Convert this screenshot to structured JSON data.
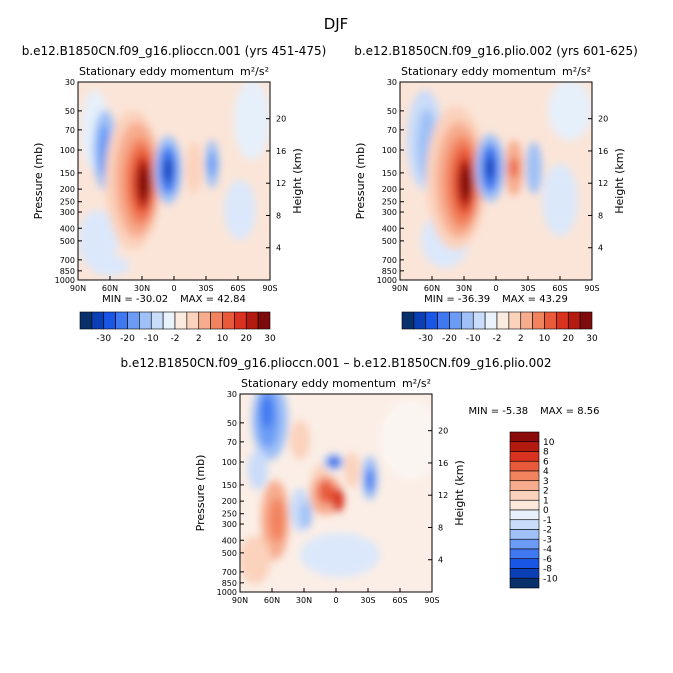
{
  "page_title": "DJF",
  "colors": {
    "diverging_scale": [
      "#08306b",
      "#0b3fb5",
      "#1a56e6",
      "#3f78f0",
      "#6b9bf5",
      "#9fc1f7",
      "#c9dcf9",
      "#eaf2fb",
      "#fbeae0",
      "#fbd2bc",
      "#f7ac8e",
      "#f2835f",
      "#e85a3a",
      "#d9321e",
      "#b31a10",
      "#7d0b0b"
    ]
  },
  "chart_data": [
    {
      "type": "heatmap",
      "title": "b.e12.B1850CN.f09_g16.plioccn.001 (yrs 451-475)",
      "subtitle": "Stationary eddy momentum",
      "units": "m²/s²",
      "xlabel": "",
      "ylabel": "Pressure (mb)",
      "y2label": "Height (km)",
      "x_ticks": [
        "90N",
        "60N",
        "30N",
        "0",
        "30S",
        "60S",
        "90S"
      ],
      "y_ticks": [
        "30",
        "50",
        "70",
        "100",
        "150",
        "200",
        "250",
        "300",
        "400",
        "500",
        "700",
        "850",
        "1000"
      ],
      "y2_ticks": [
        "4",
        "8",
        "12",
        "16",
        "20"
      ],
      "min_label": "MIN = -30.02",
      "max_label": "MAX = 42.84",
      "min": -30.02,
      "max": 42.84,
      "colorbar_labels": [
        "-30",
        "-20",
        "-10",
        "-2",
        "2",
        "10",
        "20",
        "30"
      ]
    },
    {
      "type": "heatmap",
      "title": "b.e12.B1850CN.f09_g16.plio.002 (yrs 601-625)",
      "subtitle": "Stationary eddy momentum",
      "units": "m²/s²",
      "xlabel": "",
      "ylabel": "Pressure (mb)",
      "y2label": "Height (km)",
      "x_ticks": [
        "90N",
        "60N",
        "30N",
        "0",
        "30S",
        "60S",
        "90S"
      ],
      "y_ticks": [
        "30",
        "50",
        "70",
        "100",
        "150",
        "200",
        "250",
        "300",
        "400",
        "500",
        "700",
        "850",
        "1000"
      ],
      "y2_ticks": [
        "4",
        "8",
        "12",
        "16",
        "20"
      ],
      "min_label": "MIN = -36.39",
      "max_label": "MAX = 43.29",
      "min": -36.39,
      "max": 43.29,
      "colorbar_labels": [
        "-30",
        "-20",
        "-10",
        "-2",
        "2",
        "10",
        "20",
        "30"
      ]
    },
    {
      "type": "heatmap",
      "title": "b.e12.B1850CN.f09_g16.plioccn.001 – b.e12.B1850CN.f09_g16.plio.002",
      "subtitle": "Stationary eddy momentum",
      "units": "m²/s²",
      "xlabel": "",
      "ylabel": "Pressure (mb)",
      "y2label": "Height (km)",
      "x_ticks": [
        "90N",
        "60N",
        "30N",
        "0",
        "30S",
        "60S",
        "90S"
      ],
      "y_ticks": [
        "30",
        "50",
        "70",
        "100",
        "150",
        "200",
        "250",
        "300",
        "400",
        "500",
        "700",
        "850",
        "1000"
      ],
      "y2_ticks": [
        "4",
        "8",
        "12",
        "16",
        "20"
      ],
      "min_label": "MIN = -5.38",
      "max_label": "MAX = 8.56",
      "min": -5.38,
      "max": 8.56,
      "colorbar_labels": [
        "10",
        "8",
        "6",
        "4",
        "3",
        "2",
        "1",
        "0",
        "-1",
        "-2",
        "-3",
        "-4",
        "-6",
        "-8",
        "-10"
      ]
    }
  ]
}
